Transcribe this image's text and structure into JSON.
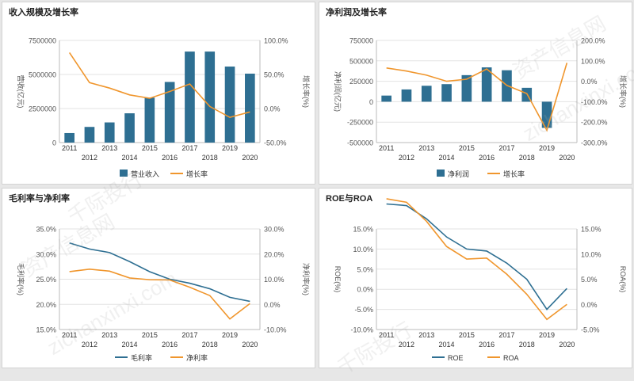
{
  "colors": {
    "bar": "#2e6f92",
    "line": "#f0962d",
    "line_dark": "#2e6f92",
    "grid": "#e3e3e3",
    "text": "#555555"
  },
  "watermarks": [
    "资产信息网",
    "zichanxinxi.com",
    "千际投行",
    "资产信息网",
    "zichanxinxi.com",
    "千际投行"
  ],
  "chart_data": [
    {
      "id": "revenue",
      "title": "收入规模及增长率",
      "type": "bar",
      "categories": [
        "2011",
        "2012",
        "2013",
        "2014",
        "2015",
        "2016",
        "2017",
        "2018",
        "2019",
        "2020"
      ],
      "bar_series": {
        "name": "营业收入",
        "values": [
          700000,
          1150000,
          1480000,
          2150000,
          3300000,
          4450000,
          6680000,
          6680000,
          5580000,
          5060000
        ]
      },
      "line_series": {
        "name": "增长率",
        "values": [
          82,
          38,
          30,
          20,
          15,
          25,
          36,
          3,
          -13,
          -5
        ]
      },
      "y_left": {
        "label": "营收(亿元)",
        "min": 0,
        "max": 7500000,
        "ticks": [
          "0",
          "2500000",
          "5000000",
          "7500000"
        ]
      },
      "y_right": {
        "label": "增长率(%)",
        "min": -50,
        "max": 100,
        "ticks": [
          "-50.0%",
          "0.0%",
          "50.0%",
          "100.0%"
        ]
      }
    },
    {
      "id": "net_profit",
      "title": "净利润及增长率",
      "type": "bar",
      "categories": [
        "2011",
        "2012",
        "2013",
        "2014",
        "2015",
        "2016",
        "2017",
        "2018",
        "2019",
        "2020"
      ],
      "bar_series": {
        "name": "净利润",
        "values": [
          75000,
          150000,
          195000,
          215000,
          325000,
          420000,
          385000,
          170000,
          -320000,
          0
        ]
      },
      "line_series": {
        "name": "增长率",
        "values": [
          65,
          50,
          30,
          0,
          10,
          60,
          -20,
          -60,
          -240,
          90
        ]
      },
      "y_left": {
        "label": "净利润(亿元)",
        "min": -500000,
        "max": 750000,
        "ticks": [
          "-500000",
          "-250000",
          "0",
          "250000",
          "500000",
          "750000"
        ]
      },
      "y_right": {
        "label": "增长率(%)",
        "min": -300,
        "max": 200,
        "ticks": [
          "-300.0%",
          "-200.0%",
          "-100.0%",
          "0.0%",
          "100.0%",
          "200.0%"
        ]
      }
    },
    {
      "id": "margins",
      "title": "毛利率与净利率",
      "type": "line",
      "categories": [
        "2011",
        "2012",
        "2013",
        "2014",
        "2015",
        "2016",
        "2017",
        "2018",
        "2019",
        "2020"
      ],
      "series_left": {
        "name": "毛利率",
        "values": [
          32.2,
          31.0,
          30.3,
          28.5,
          26.5,
          25.0,
          24.2,
          23.1,
          21.4,
          20.6
        ]
      },
      "series_right": {
        "name": "净利率",
        "values": [
          13.0,
          14.0,
          13.2,
          10.5,
          9.8,
          9.7,
          6.8,
          3.5,
          -5.8,
          0.3
        ]
      },
      "y_left": {
        "label": "毛利率(%)",
        "min": 15,
        "max": 35,
        "ticks": [
          "15.0%",
          "20.0%",
          "25.0%",
          "30.0%",
          "35.0%"
        ]
      },
      "y_right": {
        "label": "净利率(%)",
        "min": -10,
        "max": 30,
        "ticks": [
          "-10.0%",
          "0.0%",
          "10.0%",
          "20.0%",
          "30.0%"
        ]
      }
    },
    {
      "id": "roe_roa",
      "title": "ROE与ROA",
      "type": "line",
      "categories": [
        "2011",
        "2012",
        "2013",
        "2014",
        "2015",
        "2016",
        "2017",
        "2018",
        "2019",
        "2020"
      ],
      "series_left": {
        "name": "ROE",
        "values": [
          21.2,
          20.8,
          17.5,
          13.0,
          10.0,
          9.5,
          6.5,
          2.5,
          -5.0,
          0.2
        ]
      },
      "series_right": {
        "name": "ROA",
        "values": [
          21.0,
          20.3,
          16.5,
          11.5,
          9.0,
          9.2,
          6.0,
          2.0,
          -3.0,
          0.0
        ]
      },
      "y_left": {
        "label": "ROE(%)",
        "min": -10,
        "max": 15,
        "ticks": [
          "-10.0%",
          "-5.0%",
          "0.0%",
          "5.0%",
          "10.0%",
          "15.0%"
        ]
      },
      "y_right": {
        "label": "ROA(%)",
        "min": -5,
        "max": 15,
        "ticks": [
          "-5.0%",
          "0.0%",
          "5.0%",
          "10.0%",
          "15.0%"
        ]
      }
    }
  ]
}
